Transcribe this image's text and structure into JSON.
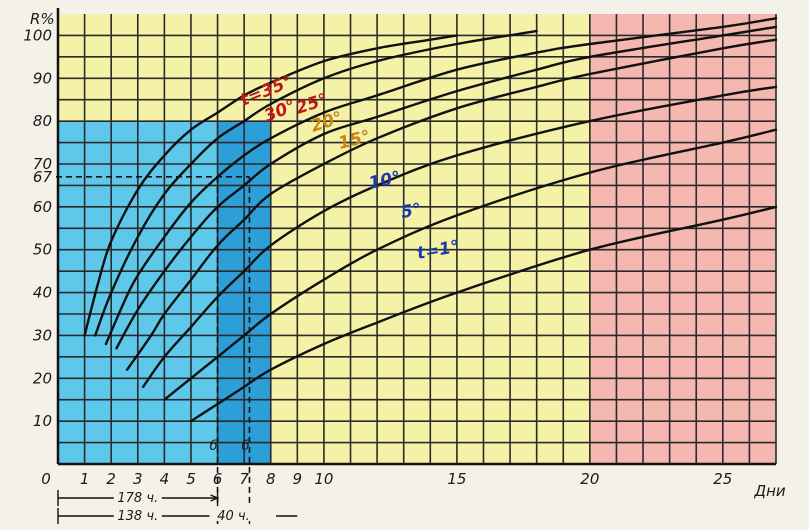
{
  "chart_data": {
    "type": "line",
    "ylabel": "R%",
    "xlabel": "Дни",
    "xlim": [
      0,
      27
    ],
    "ylim": [
      0,
      105
    ],
    "grid": true,
    "x_ticks": [
      "1",
      "2",
      "3",
      "4",
      "5",
      "6",
      "7",
      "8",
      "9",
      "10",
      "15",
      "20",
      "25"
    ],
    "x_tick_values": [
      1,
      2,
      3,
      4,
      5,
      6,
      7,
      8,
      9,
      10,
      15,
      20,
      25
    ],
    "x_origin_label": "0",
    "y_ticks": [
      "10",
      "20",
      "30",
      "40",
      "50",
      "60",
      "67",
      "70",
      "80",
      "90",
      "100"
    ],
    "y_tick_values": [
      10,
      20,
      30,
      40,
      50,
      60,
      67,
      70,
      80,
      90,
      100
    ],
    "series": [
      {
        "name": "t=35°",
        "color": "#c01818",
        "x": [
          1,
          1.5,
          2,
          3,
          4,
          5,
          6,
          7,
          8,
          10,
          12,
          14,
          15
        ],
        "y": [
          30,
          42,
          52,
          64,
          72,
          78,
          82,
          86,
          89,
          94,
          97,
          99,
          100
        ]
      },
      {
        "name": "30°",
        "color": "#c01818",
        "x": [
          1.4,
          2,
          3,
          4,
          5,
          6,
          7,
          8,
          10,
          12,
          15,
          18
        ],
        "y": [
          30,
          40,
          53,
          63,
          70,
          76,
          80,
          84,
          90,
          94,
          98,
          101
        ]
      },
      {
        "name": "25°",
        "color": "#c01818",
        "x": [
          1.8,
          2.5,
          3,
          4,
          5,
          6,
          7,
          8,
          10,
          12,
          15,
          18,
          20,
          25,
          27
        ],
        "y": [
          28,
          38,
          44,
          53,
          61,
          67,
          72,
          76,
          82,
          86,
          92,
          96,
          98,
          102,
          104
        ]
      },
      {
        "name": "20°",
        "color": "#c8861a",
        "x": [
          2.2,
          3,
          4,
          5,
          6,
          7,
          8,
          10,
          12,
          15,
          18,
          20,
          25,
          27
        ],
        "y": [
          27,
          36,
          45,
          53,
          60,
          65,
          70,
          77,
          81,
          87,
          92,
          95,
          100,
          102
        ]
      },
      {
        "name": "15°",
        "color": "#c8861a",
        "x": [
          2.6,
          3.5,
          4,
          5,
          6,
          7,
          8,
          10,
          12,
          15,
          18,
          20,
          25,
          27
        ],
        "y": [
          22,
          30,
          35,
          43,
          51,
          57,
          63,
          70,
          76,
          83,
          88,
          91,
          97,
          99
        ]
      },
      {
        "name": "10°",
        "color": "#1d3aa8",
        "x": [
          3.2,
          4,
          5,
          6,
          7,
          8,
          10,
          12,
          15,
          20,
          25,
          27
        ],
        "y": [
          18,
          25,
          32,
          39,
          45,
          51,
          59,
          65,
          72,
          80,
          86,
          88
        ]
      },
      {
        "name": "5°",
        "color": "#1d3aa8",
        "x": [
          4,
          5,
          6,
          7,
          8,
          10,
          12,
          15,
          20,
          25,
          27
        ],
        "y": [
          15,
          20,
          25,
          30,
          35,
          43,
          50,
          58,
          68,
          75,
          78
        ]
      },
      {
        "name": "t=1°",
        "color": "#1d3aa8",
        "x": [
          5,
          6,
          7,
          8,
          10,
          12,
          15,
          20,
          25,
          27
        ],
        "y": [
          10,
          14,
          18,
          22,
          28,
          33,
          40,
          50,
          57,
          60
        ]
      }
    ],
    "marker_y": 67,
    "marker_x_points": [
      6,
      7.2
    ],
    "marker_letters": [
      "б",
      "б"
    ],
    "annotations": [
      {
        "text": "178 ч.",
        "x_from": 0,
        "x_to": 6
      },
      {
        "text": "138 ч.",
        "x_from": 0,
        "x_to": 6
      },
      {
        "text": "40 ч.",
        "x_from": 6,
        "x_to": 7.2
      }
    ],
    "regions": [
      {
        "from": 0,
        "to": 8,
        "y_to": 80,
        "color": "#5ec8ea"
      },
      {
        "from": 6,
        "to": 8,
        "y_to": 80,
        "color": "#2d9fd8"
      },
      {
        "from": 20,
        "to": 27,
        "y_to": 105,
        "color": "#f4b8b0"
      }
    ],
    "background_color": "#f5f2a8"
  }
}
